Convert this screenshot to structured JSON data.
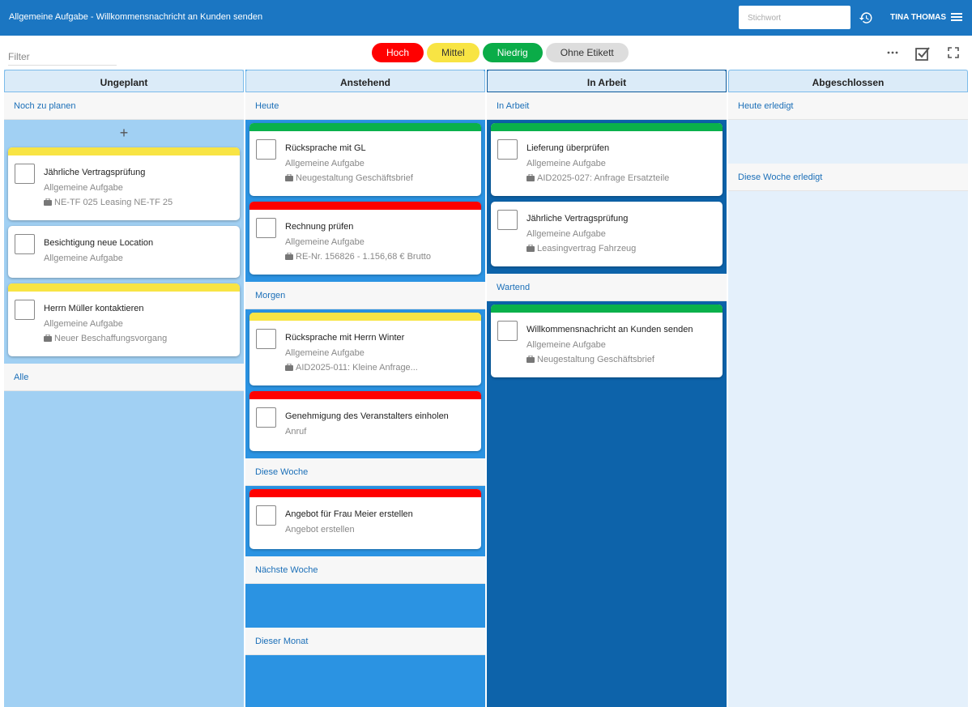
{
  "header": {
    "title": "Allgemeine Aufgabe - Willkommensnachricht an Kunden senden",
    "search_placeholder": "Stichwort",
    "user": "TINA THOMAS"
  },
  "toolbar": {
    "filter_placeholder": "Filter",
    "labels": [
      {
        "text": "Hoch",
        "color": "#ff0000",
        "text_color": "#ffffff"
      },
      {
        "text": "Mittel",
        "color": "#f8e444",
        "text_color": "#333333"
      },
      {
        "text": "Niedrig",
        "color": "#0aac48",
        "text_color": "#ffffff"
      },
      {
        "text": "Ohne Etikett",
        "color": "#dddddd",
        "text_color": "#333333"
      }
    ]
  },
  "columns": [
    {
      "title": "Ungeplant",
      "color": "#a1d0f3",
      "groups": [
        {
          "title": "Noch zu planen",
          "cards": [
            {
              "title": "Jährliche Vertragsprüfung",
              "type": "Allgemeine Aufgabe",
              "ref": "NE-TF 025 Leasing NE-TF 25",
              "color": "#f8e444"
            },
            {
              "title": "Besichtigung neue Location",
              "type": "Allgemeine Aufgabe"
            },
            {
              "title": "Herrn Müller kontaktieren",
              "type": "Allgemeine Aufgabe",
              "ref": "Neuer Beschaffungsvorgang",
              "color": "#f8e444"
            }
          ]
        },
        {
          "title": "Alle",
          "cards": []
        }
      ]
    },
    {
      "title": "Anstehend",
      "color": "#2b93e2",
      "groups": [
        {
          "title": "Heute",
          "cards": [
            {
              "title": "Rücksprache mit GL",
              "type": "Allgemeine Aufgabe",
              "ref": "Neugestaltung Geschäftsbrief",
              "color": "#0ab14b"
            },
            {
              "title": "Rechnung prüfen",
              "type": "Allgemeine Aufgabe",
              "ref": "RE-Nr. 156826 - 1.156,68 € Brutto",
              "color": "#ff0000"
            }
          ]
        },
        {
          "title": "Morgen",
          "cards": [
            {
              "title": "Rücksprache mit Herrn Winter",
              "type": "Allgemeine Aufgabe",
              "ref": "AID2025-011: Kleine Anfrage...",
              "color": "#f8e444"
            },
            {
              "title": "Genehmigung des Veranstalters einholen",
              "type": "Anruf",
              "color": "#ff0000"
            }
          ]
        },
        {
          "title": "Diese Woche",
          "cards": [
            {
              "title": "Angebot für Frau Meier erstellen",
              "type": "Angebot erstellen",
              "color": "#ff0000"
            }
          ]
        },
        {
          "title": "Nächste Woche",
          "cards": []
        },
        {
          "title": "Dieser Monat",
          "cards": []
        }
      ]
    },
    {
      "title": "In Arbeit",
      "color": "#0d63aa",
      "groups": [
        {
          "title": "In Arbeit",
          "cards": [
            {
              "title": "Lieferung überprüfen",
              "type": "Allgemeine Aufgabe",
              "ref": "AID2025-027: Anfrage Ersatzteile",
              "color": "#0ab14b"
            },
            {
              "title": "Jährliche Vertragsprüfung",
              "type": "Allgemeine Aufgabe",
              "ref": "Leasingvertrag Fahrzeug"
            }
          ]
        },
        {
          "title": "Wartend",
          "cards": [
            {
              "title": "Willkommensnachricht an Kunden senden",
              "type": "Allgemeine Aufgabe",
              "ref": "Neugestaltung Geschäftsbrief",
              "color": "#0ab14b"
            }
          ]
        }
      ]
    },
    {
      "title": "Abgeschlossen",
      "color": "#e4f0fb",
      "groups": [
        {
          "title": "Heute erledigt",
          "cards": []
        },
        {
          "title": "Diese Woche erledigt",
          "cards": []
        }
      ]
    }
  ]
}
